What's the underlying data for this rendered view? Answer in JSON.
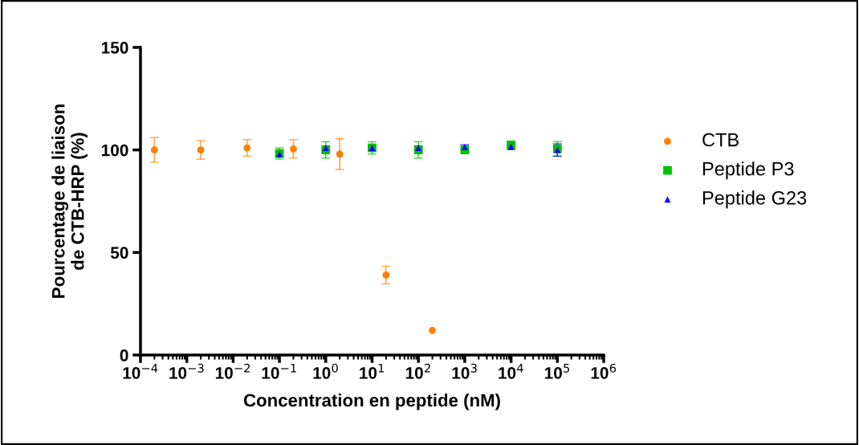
{
  "chart_data": {
    "type": "scatter",
    "xlabel": "Concentration en peptide (nM)",
    "ylabel": "Pourcentage de liaison\nde CTB-HRP (%)",
    "log": "x",
    "xlim": [
      0.0001,
      1000000
    ],
    "xticks": [
      {
        "value": 0.0001,
        "label": "10$^{−4}$"
      },
      {
        "value": 0.001,
        "label": "10$^{−3}$"
      },
      {
        "value": 0.01,
        "label": "10$^{−2}$"
      },
      {
        "value": 0.1,
        "label": "10$^{−1}$"
      },
      {
        "value": 1,
        "label": "10$^{0}$"
      },
      {
        "value": 10,
        "label": "10$^{1}$"
      },
      {
        "value": 100,
        "label": "10$^{2}$"
      },
      {
        "value": 1000,
        "label": "10$^{3}$"
      },
      {
        "value": 10000,
        "label": "10$^{4}$"
      },
      {
        "value": 100000,
        "label": "10$^{5}$"
      },
      {
        "value": 1000000,
        "label": "10$^{6}$"
      }
    ],
    "ylim": [
      0,
      150
    ],
    "yticks": [
      0,
      50,
      100,
      150
    ],
    "grid": false,
    "legend": "right",
    "series": [
      {
        "name": "CTB",
        "color": "#ff7f00",
        "marker": "circle",
        "x": [
          0.0002,
          0.002,
          0.02,
          0.2,
          2,
          20,
          200
        ],
        "values": [
          100,
          100,
          101,
          100.5,
          98,
          39,
          12
        ],
        "errors": [
          6,
          4.5,
          4,
          4.5,
          7.5,
          4.3,
          null
        ]
      },
      {
        "name": "Peptide P3",
        "color": "#00c000",
        "marker": "square",
        "x": [
          0.1,
          1,
          10,
          100,
          1000,
          10000,
          100000
        ],
        "values": [
          98.3,
          100,
          101,
          100,
          100,
          102.3,
          100.5
        ],
        "errors": [
          2.7,
          4,
          3,
          4,
          null,
          2,
          3.6
        ]
      },
      {
        "name": "Peptide G23",
        "color": "#0000ff",
        "marker": "triangle",
        "x": [
          0.1,
          1,
          10,
          100,
          1000,
          10000,
          100000
        ],
        "values": [
          98,
          101,
          101,
          101,
          101.5,
          101.5,
          100
        ],
        "errors": [
          1,
          1,
          1,
          1,
          1,
          1,
          3
        ]
      }
    ]
  }
}
